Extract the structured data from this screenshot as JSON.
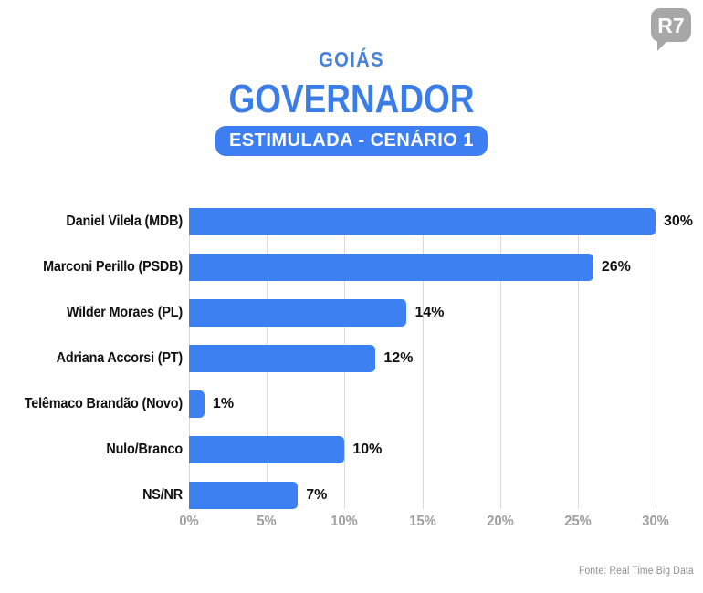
{
  "header": {
    "logo_text": "R7",
    "kicker": "GOIÁS",
    "title": "GOVERNADOR",
    "badge": "ESTIMULADA - CENÁRIO 1"
  },
  "chart_data": {
    "type": "bar",
    "orientation": "horizontal",
    "title": "GOVERNADOR",
    "subtitle": "ESTIMULADA - CENÁRIO 1",
    "categories": [
      "Daniel Vilela (MDB)",
      "Marconi Perillo (PSDB)",
      "Wilder Moraes (PL)",
      "Adriana Accorsi (PT)",
      "Telêmaco Brandão (Novo)",
      "Nulo/Branco",
      "NS/NR"
    ],
    "values": [
      30,
      26,
      14,
      12,
      1,
      10,
      7
    ],
    "value_suffix": "%",
    "x_ticks": [
      0,
      5,
      10,
      15,
      20,
      25,
      30
    ],
    "x_tick_suffix": "%",
    "xlim": [
      0,
      30
    ],
    "xlabel": "",
    "ylabel": "",
    "grid": true,
    "legend": "none",
    "bar_color": "#3d80f2"
  },
  "footer": {
    "source": "Fonte: Real Time Big Data"
  },
  "colors": {
    "bar": "#3d80f2",
    "kicker": "#4a82d9",
    "title": "#3a7ce8",
    "badge_bg": "#3d7ff2",
    "badge_text": "#ffffff",
    "grid": "#d8d8d8",
    "tick": "#9e9e9e",
    "source": "#8f8f8f",
    "logo": "#a7a7a7"
  }
}
